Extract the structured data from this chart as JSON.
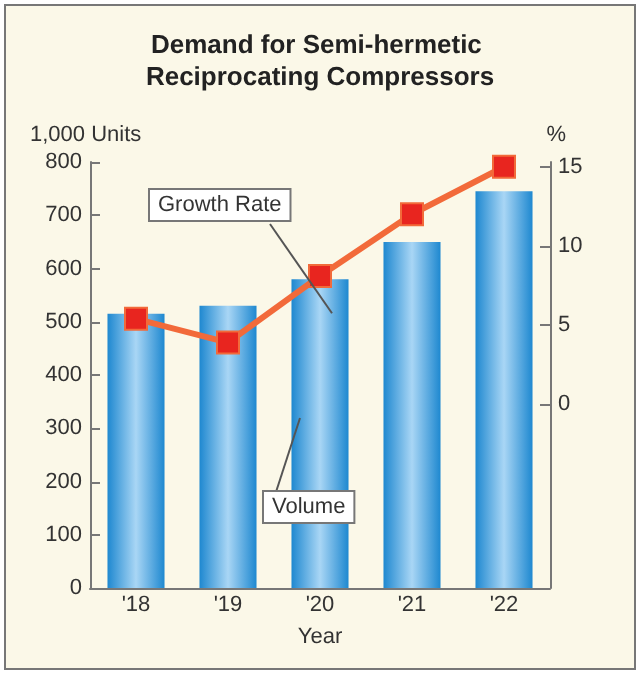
{
  "chart_data": {
    "type": "bar",
    "title": "Demand for Semi-hermetic Reciprocating Compressors",
    "xlabel": "Year",
    "ylabel": "1,000 Units",
    "y2label": "%",
    "categories": [
      "'18",
      "'19",
      "'20",
      "'21",
      "'22"
    ],
    "series": [
      {
        "name": "Volume",
        "color": "#1e88d0",
        "values": [
          515,
          530,
          580,
          650,
          745
        ]
      },
      {
        "name": "Growth Rate",
        "type": "line",
        "axis": "y2",
        "color": "#f26a3a",
        "marker": "square",
        "values": [
          5.4,
          3.9,
          8.1,
          12,
          15
        ]
      }
    ],
    "ylim": [
      0,
      800
    ],
    "yticks": [
      0,
      100,
      200,
      300,
      400,
      500,
      600,
      700,
      800
    ],
    "y2lim": [
      -11.6,
      15.3
    ],
    "y2ticks": [
      0,
      5,
      10,
      15
    ],
    "grid": false,
    "legend": false
  }
}
